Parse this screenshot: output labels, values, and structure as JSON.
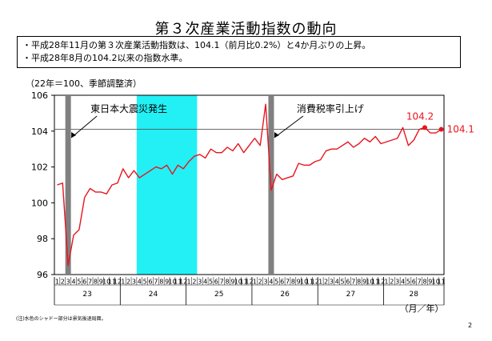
{
  "title": "第３次産業活動指数の動向",
  "summary": [
    "・平成28年11月の第３次産業活動指数は、104.1（前月比0.2%）と4か月ぶりの上昇。",
    "・平成28年8月の104.2以来の指数水準。"
  ],
  "unit_note": "（22年＝100、季節調整済）",
  "footnote": "(注)水色のシャドー部分は景気後退局面。",
  "page_number": "2",
  "chart_data": {
    "type": "line",
    "ylim": [
      96,
      106
    ],
    "yticks": [
      "96",
      "98",
      "100",
      "102",
      "104",
      "106"
    ],
    "x_unit_label": "（月／年）",
    "months_sequence": [
      "1",
      "2",
      "3",
      "4",
      "5",
      "6",
      "7",
      "8",
      "9",
      "10",
      "11",
      "12",
      "1",
      "2",
      "3",
      "4",
      "5",
      "6",
      "7",
      "8",
      "9",
      "10",
      "11",
      "12",
      "1",
      "2",
      "3",
      "4",
      "5",
      "6",
      "7",
      "8",
      "9",
      "10",
      "11",
      "12",
      "1",
      "2",
      "3",
      "4",
      "5",
      "6",
      "7",
      "8",
      "9",
      "10",
      "11",
      "12",
      "1",
      "2",
      "3",
      "4",
      "5",
      "6",
      "7",
      "8",
      "9",
      "10",
      "11",
      "12",
      "1",
      "2",
      "3",
      "4",
      "5",
      "6",
      "7",
      "8",
      "9",
      "10",
      "11"
    ],
    "years": [
      {
        "label": "23",
        "start_index": 0,
        "count": 12
      },
      {
        "label": "24",
        "start_index": 12,
        "count": 12
      },
      {
        "label": "25",
        "start_index": 24,
        "count": 12
      },
      {
        "label": "26",
        "start_index": 36,
        "count": 12
      },
      {
        "label": "27",
        "start_index": 48,
        "count": 12
      },
      {
        "label": "28",
        "start_index": 60,
        "count": 11
      }
    ],
    "series": [
      {
        "color": "#e8141e",
        "values": [
          101.0,
          101.1,
          96.5,
          98.2,
          98.5,
          100.3,
          100.8,
          100.6,
          100.6,
          100.5,
          101.0,
          101.1,
          101.9,
          101.4,
          101.8,
          101.4,
          101.6,
          101.8,
          102.0,
          101.9,
          102.1,
          101.6,
          102.1,
          101.9,
          102.3,
          102.6,
          102.7,
          102.5,
          103.0,
          102.8,
          102.8,
          103.1,
          102.9,
          103.3,
          102.8,
          103.2,
          103.6,
          103.2,
          105.5,
          100.7,
          101.6,
          101.3,
          101.4,
          101.5,
          102.2,
          102.1,
          102.1,
          102.3,
          102.4,
          102.9,
          103.0,
          103.0,
          103.2,
          103.4,
          103.1,
          103.3,
          103.6,
          103.4,
          103.7,
          103.3,
          103.4,
          103.5,
          103.6,
          104.2,
          103.2,
          103.5,
          104.1,
          104.2,
          103.9,
          103.9,
          104.1
        ]
      }
    ],
    "reference_line": 104.1,
    "shaded_period": {
      "from_index": 15,
      "to_index": 25,
      "color": "#22f0f5"
    },
    "event_markers": [
      {
        "index": 2,
        "label": "東日本大震災発生"
      },
      {
        "index": 39,
        "label": "消費税率引上げ"
      }
    ],
    "point_labels": [
      {
        "index": 67,
        "label": "104.2"
      },
      {
        "index": 70,
        "label": "104.1"
      }
    ]
  }
}
